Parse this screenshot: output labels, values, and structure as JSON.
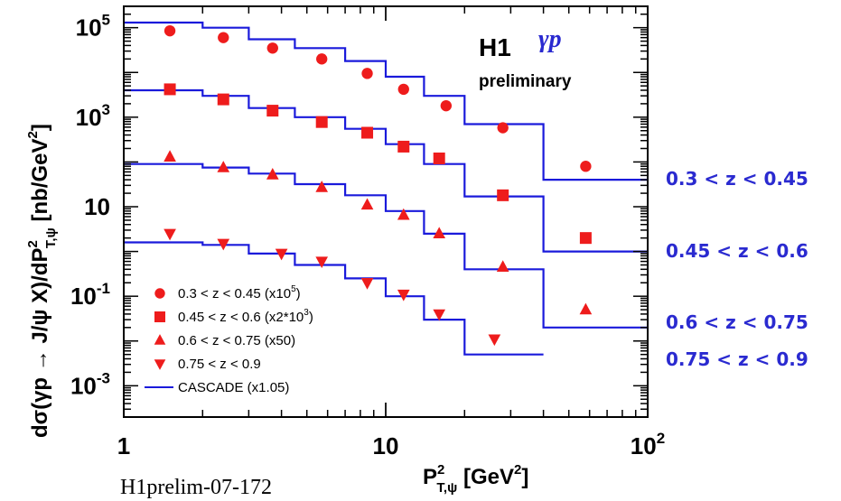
{
  "chart_data": {
    "type": "scatter",
    "title": "H1",
    "process": "γp",
    "status": "preliminary",
    "reference": "H1prelim-07-172",
    "xlabel": "P",
    "xlabel_sup": "2",
    "xlabel_sub": "T,ψ",
    "xlabel_unit_open": " [GeV",
    "xlabel_unit_sup": "2",
    "xlabel_unit_close": "]",
    "ylabel": "dσ(γp → J/ψ X)/dP",
    "ylabel_sup": "2",
    "ylabel_sub": "T,ψ",
    "ylabel_unit_open": " [nb/GeV",
    "ylabel_unit_sup": "2",
    "ylabel_unit_close": "]",
    "x_scale": "log",
    "y_scale": "log",
    "xlim": [
      1,
      100
    ],
    "ylim": [
      0.0002,
      300000
    ],
    "x_ticks": [
      {
        "value": 1,
        "base": "1",
        "exp": ""
      },
      {
        "value": 10,
        "base": "10",
        "exp": ""
      },
      {
        "value": 100,
        "base": "10",
        "exp": "2"
      }
    ],
    "y_ticks": [
      {
        "value": 0.001,
        "base": "10",
        "exp": "-3"
      },
      {
        "value": 0.1,
        "base": "10",
        "exp": "-1"
      },
      {
        "value": 10,
        "base": "10",
        "exp": ""
      },
      {
        "value": 1000,
        "base": "10",
        "exp": "3"
      },
      {
        "value": 100000,
        "base": "10",
        "exp": "5"
      }
    ],
    "series": [
      {
        "name": "0.3 < z < 0.45 (x10",
        "name_sup": "5",
        "name_close": ")",
        "marker": "circle",
        "x": [
          1.5,
          2.4,
          3.7,
          5.7,
          8.5,
          11.7,
          17,
          28,
          58
        ],
        "y": [
          85000,
          60000,
          35000,
          20000,
          9500,
          4200,
          1800,
          580,
          80
        ]
      },
      {
        "name": "0.45 < z < 0.6 (x2*10",
        "name_sup": "3",
        "name_close": ")",
        "marker": "square",
        "x": [
          1.5,
          2.4,
          3.7,
          5.7,
          8.5,
          11.7,
          16,
          28,
          58
        ],
        "y": [
          4200,
          2500,
          1400,
          780,
          450,
          220,
          120,
          18,
          2
        ]
      },
      {
        "name": "0.6 < z < 0.75 (x50)",
        "name_sup": "",
        "name_close": "",
        "marker": "triangle-up",
        "x": [
          1.5,
          2.4,
          3.7,
          5.7,
          8.5,
          11.7,
          16,
          28,
          58
        ],
        "y": [
          130,
          75,
          52,
          27,
          11,
          6.5,
          2.5,
          0.45,
          0.05
        ]
      },
      {
        "name": "0.75 < z < 0.9",
        "name_sup": "",
        "name_close": "",
        "marker": "triangle-down",
        "x": [
          1.5,
          2.4,
          4,
          5.7,
          8.5,
          11.7,
          16,
          26
        ],
        "y": [
          2.5,
          1.5,
          0.9,
          0.6,
          0.2,
          0.11,
          0.04,
          0.011
        ]
      }
    ],
    "model": {
      "name": "CASCADE (x1.05)",
      "bin_edges": [
        1,
        2,
        3,
        4.5,
        7,
        10,
        14,
        20,
        40,
        100
      ],
      "histograms": [
        {
          "values": [
            130000,
            100000,
            55000,
            35000,
            18000,
            8000,
            3000,
            700,
            40
          ]
        },
        {
          "values": [
            4000,
            3000,
            1600,
            1000,
            550,
            250,
            90,
            17,
            1
          ]
        },
        {
          "values": [
            90,
            75,
            55,
            32,
            18,
            8,
            2.5,
            0.4,
            0.02
          ]
        },
        {
          "values": [
            1.6,
            1.4,
            0.9,
            0.5,
            0.25,
            0.1,
            0.03,
            0.005
          ]
        }
      ]
    },
    "range_labels": [
      "0.3 < z < 0.45",
      "0.45 < z < 0.6",
      "0.6 < z < 0.75",
      "0.75 < z < 0.9"
    ],
    "colors": {
      "data": "#ee1c1c",
      "model": "#1a1adb",
      "axis": "#000000",
      "range_label": "#2a2ad0",
      "process": "#2a2ad0"
    }
  }
}
